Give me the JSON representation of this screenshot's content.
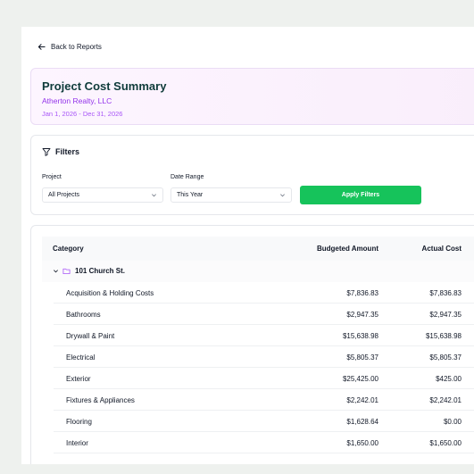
{
  "nav": {
    "back_label": "Back to Reports"
  },
  "report": {
    "title": "Project Cost Summary",
    "client": "Atherton Realty, LLC",
    "date_range": "Jan 1, 2026 - Dec 31, 2026"
  },
  "filters": {
    "title": "Filters",
    "project_label": "Project",
    "project_value": "All Projects",
    "date_range_label": "Date Range",
    "date_range_value": "This Year",
    "apply_label": "Apply Filters",
    "apply_color": "#16c35b"
  },
  "table": {
    "headers": {
      "category": "Category",
      "budgeted": "Budgeted Amount",
      "actual": "Actual Cost"
    },
    "group": {
      "name": "101 Church St."
    },
    "rows": [
      {
        "category": "Acquisition & Holding Costs",
        "budgeted": "$7,836.83",
        "actual": "$7,836.83"
      },
      {
        "category": "Bathrooms",
        "budgeted": "$2,947.35",
        "actual": "$2,947.35"
      },
      {
        "category": "Drywall & Paint",
        "budgeted": "$15,638.98",
        "actual": "$15,638.98"
      },
      {
        "category": "Electrical",
        "budgeted": "$5,805.37",
        "actual": "$5,805.37"
      },
      {
        "category": "Exterior",
        "budgeted": "$25,425.00",
        "actual": "$425.00"
      },
      {
        "category": "Fixtures & Appliances",
        "budgeted": "$2,242.01",
        "actual": "$2,242.01"
      },
      {
        "category": "Flooring",
        "budgeted": "$1,628.64",
        "actual": "$0.00"
      },
      {
        "category": "Interior",
        "budgeted": "$1,650.00",
        "actual": "$1,650.00"
      }
    ]
  }
}
